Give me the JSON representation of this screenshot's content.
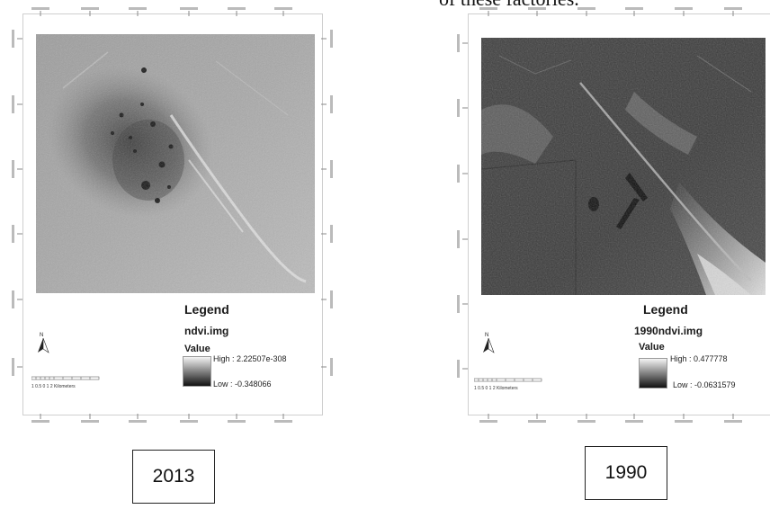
{
  "caption_top": "of these factories.",
  "maps": [
    {
      "legend_title": "Legend",
      "layer_name": "ndvi.img",
      "value_label": "Value",
      "high_label": "High : 2.22507e-308",
      "low_label": "Low : -0.348066",
      "north_label": "N",
      "scale_label": "1  0.5  0        1        2 Kilometers",
      "year": "2013",
      "ramp_colors": [
        "#f4f4f4",
        "#111111"
      ]
    },
    {
      "legend_title": "Legend",
      "layer_name": "1990ndvi.img",
      "value_label": "Value",
      "high_label": "High : 0.477778",
      "low_label": "Low : -0.0631579",
      "north_label": "N",
      "scale_label": "1  0.5  0        1        2 Kilometers",
      "year": "1990",
      "ramp_colors": [
        "#f4f4f4",
        "#111111"
      ]
    }
  ]
}
